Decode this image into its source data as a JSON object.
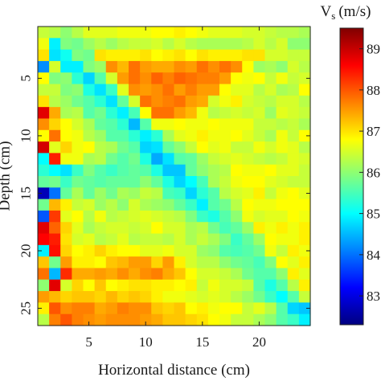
{
  "chart_data": {
    "type": "heatmap",
    "title": "",
    "xlabel": "Horizontal distance (cm)",
    "ylabel": "Depth (cm)",
    "xticks": [
      5,
      10,
      15,
      20
    ],
    "yticks": [
      5,
      10,
      15,
      20,
      25
    ],
    "xlim": [
      0.5,
      24.5
    ],
    "ylim": [
      26.5,
      0.5
    ],
    "colorbar": {
      "title": "V",
      "title_subscript": "s",
      "title_unit": "(m/s)",
      "ticks": [
        83,
        84,
        85,
        86,
        87,
        88,
        89
      ],
      "range": [
        82.3,
        89.5
      ],
      "colormap": "jet"
    },
    "grid_size": [
      26,
      24
    ],
    "z": [
      [
        86.4,
        86.3,
        86.0,
        86.3,
        86.6,
        86.6,
        86.6,
        86.7,
        86.7,
        86.7,
        86.8,
        86.8,
        86.9,
        86.8,
        86.7,
        86.6,
        86.6,
        86.6,
        86.5,
        86.5,
        86.4,
        86.3,
        86.3,
        86.2
      ],
      [
        86.7,
        84.9,
        85.9,
        85.8,
        86.1,
        86.3,
        86.1,
        86.3,
        86.4,
        86.4,
        86.5,
        86.3,
        86.5,
        86.3,
        86.2,
        86.2,
        86.2,
        86.2,
        86.3,
        86.5,
        86.3,
        86.5,
        86.0,
        86.0
      ],
      [
        87.0,
        84.8,
        85.1,
        85.9,
        85.8,
        87.0,
        86.9,
        86.9,
        86.9,
        87.0,
        86.8,
        86.9,
        87.0,
        86.8,
        87.0,
        86.9,
        86.9,
        86.9,
        87.0,
        87.0,
        86.5,
        86.5,
        86.4,
        86.4
      ],
      [
        84.2,
        86.5,
        84.9,
        84.9,
        85.9,
        86.1,
        87.6,
        87.3,
        87.8,
        87.5,
        87.4,
        87.4,
        87.6,
        87.5,
        87.8,
        87.6,
        87.8,
        87.6,
        86.8,
        86.1,
        86.2,
        86.0,
        86.5,
        86.3
      ],
      [
        86.8,
        85.9,
        86.0,
        85.3,
        84.7,
        85.6,
        86.5,
        87.5,
        87.8,
        87.6,
        87.9,
        87.7,
        87.9,
        87.8,
        87.7,
        87.7,
        87.5,
        86.8,
        86.7,
        86.8,
        86.4,
        86.7,
        86.4,
        86.5
      ],
      [
        86.4,
        86.4,
        85.9,
        86.0,
        85.2,
        84.8,
        85.4,
        86.6,
        87.6,
        87.5,
        87.6,
        87.8,
        87.5,
        87.7,
        87.5,
        87.5,
        86.8,
        86.6,
        86.6,
        86.3,
        86.5,
        86.2,
        86.3,
        86.8
      ],
      [
        87.0,
        86.3,
        86.1,
        85.8,
        85.6,
        85.3,
        84.8,
        85.7,
        86.5,
        87.8,
        87.6,
        87.7,
        87.8,
        87.5,
        87.4,
        86.5,
        86.7,
        86.9,
        86.5,
        86.4,
        86.3,
        86.5,
        86.5,
        86.3
      ],
      [
        88.8,
        87.4,
        86.2,
        86.3,
        85.6,
        85.8,
        85.3,
        84.9,
        85.5,
        86.8,
        87.8,
        87.8,
        87.5,
        87.3,
        86.7,
        86.3,
        86.4,
        86.5,
        86.4,
        86.5,
        86.1,
        86.6,
        86.5,
        86.4
      ],
      [
        87.6,
        87.1,
        86.8,
        86.5,
        86.2,
        85.7,
        85.6,
        85.3,
        84.5,
        85.6,
        86.7,
        86.7,
        86.8,
        86.7,
        86.7,
        86.8,
        86.7,
        86.7,
        86.7,
        86.4,
        86.4,
        86.3,
        86.4,
        86.2
      ],
      [
        86.8,
        87.8,
        86.8,
        86.7,
        86.3,
        86.1,
        85.6,
        85.6,
        85.3,
        84.9,
        85.3,
        86.2,
        86.6,
        86.7,
        86.9,
        86.7,
        86.7,
        86.8,
        86.6,
        86.4,
        86.2,
        86.7,
        86.4,
        86.8
      ],
      [
        88.9,
        86.6,
        87.1,
        86.7,
        86.8,
        86.3,
        86.2,
        85.8,
        85.6,
        84.7,
        84.8,
        85.7,
        86.0,
        86.4,
        86.8,
        86.6,
        86.7,
        86.4,
        86.4,
        86.7,
        86.5,
        86.7,
        86.6,
        86.3
      ],
      [
        85.0,
        88.4,
        86.7,
        86.7,
        86.2,
        86.3,
        85.8,
        85.6,
        85.8,
        85.2,
        84.4,
        84.8,
        85.6,
        85.7,
        86.1,
        86.4,
        86.5,
        86.6,
        86.5,
        86.4,
        86.3,
        86.4,
        86.6,
        86.5
      ],
      [
        85.3,
        85.0,
        84.8,
        85.4,
        85.9,
        85.6,
        85.4,
        85.6,
        85.7,
        85.6,
        85.2,
        84.6,
        84.6,
        85.7,
        86.0,
        86.2,
        86.3,
        86.8,
        86.7,
        86.7,
        86.8,
        86.6,
        86.6,
        86.4
      ],
      [
        85.7,
        85.8,
        85.4,
        85.8,
        85.7,
        85.6,
        85.7,
        85.7,
        85.7,
        86.0,
        85.7,
        85.2,
        84.7,
        85.0,
        85.5,
        86.2,
        86.4,
        86.7,
        86.8,
        86.8,
        86.6,
        86.5,
        86.4,
        86.4
      ],
      [
        82.7,
        84.0,
        85.7,
        86.2,
        85.7,
        86.1,
        85.8,
        86.2,
        86.1,
        86.4,
        86.3,
        85.5,
        85.4,
        84.7,
        85.3,
        85.6,
        86.3,
        86.5,
        86.6,
        86.9,
        86.4,
        86.7,
        86.8,
        86.6
      ],
      [
        85.8,
        87.3,
        86.9,
        86.4,
        86.5,
        86.1,
        86.3,
        86.0,
        86.5,
        86.2,
        86.1,
        86.0,
        85.7,
        85.4,
        84.9,
        85.6,
        85.8,
        86.3,
        86.8,
        86.7,
        86.7,
        86.8,
        86.8,
        86.8
      ],
      [
        83.8,
        88.2,
        86.6,
        86.8,
        86.3,
        86.7,
        86.3,
        86.4,
        86.5,
        86.6,
        86.5,
        86.4,
        86.3,
        85.9,
        85.4,
        85.2,
        85.6,
        86.0,
        86.7,
        86.5,
        86.6,
        86.6,
        86.8,
        86.7
      ],
      [
        88.8,
        87.9,
        87.1,
        86.6,
        86.2,
        86.4,
        86.5,
        86.5,
        86.4,
        86.5,
        86.8,
        86.5,
        86.5,
        86.2,
        86.3,
        85.8,
        85.5,
        85.7,
        86.1,
        86.9,
        86.7,
        86.9,
        86.7,
        86.9
      ],
      [
        88.6,
        88.4,
        87.0,
        86.5,
        86.6,
        86.3,
        86.4,
        86.6,
        86.3,
        86.4,
        86.4,
        86.3,
        86.5,
        86.2,
        86.4,
        86.2,
        85.9,
        85.4,
        85.7,
        86.1,
        86.8,
        86.7,
        86.7,
        86.9
      ],
      [
        84.9,
        88.5,
        87.1,
        86.8,
        86.9,
        87.1,
        86.9,
        86.8,
        86.8,
        86.6,
        86.6,
        86.7,
        86.5,
        86.5,
        86.1,
        86.0,
        85.6,
        85.5,
        85.6,
        85.8,
        86.7,
        86.4,
        86.9,
        86.7
      ],
      [
        87.2,
        85.8,
        87.5,
        86.9,
        86.9,
        86.8,
        87.2,
        87.3,
        87.5,
        87.5,
        87.1,
        87.5,
        86.9,
        86.5,
        86.3,
        86.3,
        86.0,
        85.8,
        85.7,
        85.5,
        85.9,
        86.8,
        86.6,
        86.9
      ],
      [
        87.8,
        84.5,
        88.3,
        87.4,
        87.4,
        87.5,
        87.4,
        87.6,
        87.4,
        87.6,
        87.7,
        87.4,
        87.2,
        86.8,
        86.5,
        86.5,
        86.4,
        86.2,
        85.8,
        85.6,
        85.6,
        86.0,
        86.9,
        86.6
      ],
      [
        86.0,
        88.8,
        86.5,
        87.1,
        86.8,
        87.2,
        86.8,
        86.9,
        87.0,
        87.0,
        86.9,
        86.9,
        86.8,
        86.9,
        86.4,
        86.7,
        86.5,
        86.5,
        86.4,
        85.6,
        85.2,
        85.6,
        86.3,
        86.9
      ],
      [
        87.5,
        87.3,
        87.1,
        87.2,
        87.2,
        87.1,
        87.3,
        87.1,
        87.2,
        87.1,
        86.9,
        86.7,
        86.7,
        86.6,
        86.5,
        86.6,
        86.5,
        86.3,
        86.1,
        85.8,
        85.4,
        85.0,
        85.6,
        86.4
      ],
      [
        86.9,
        88.0,
        87.6,
        87.7,
        87.7,
        87.4,
        87.5,
        87.7,
        87.6,
        87.6,
        87.2,
        87.1,
        87.2,
        86.8,
        86.9,
        86.7,
        86.8,
        86.8,
        86.4,
        86.6,
        86.3,
        85.6,
        84.7,
        84.6
      ],
      [
        86.3,
        87.7,
        88.0,
        87.7,
        87.6,
        87.5,
        87.6,
        87.6,
        87.6,
        87.5,
        87.4,
        87.2,
        87.2,
        87.1,
        87.0,
        86.8,
        86.7,
        86.4,
        86.4,
        86.2,
        86.0,
        85.6,
        85.4,
        84.9
      ]
    ]
  }
}
